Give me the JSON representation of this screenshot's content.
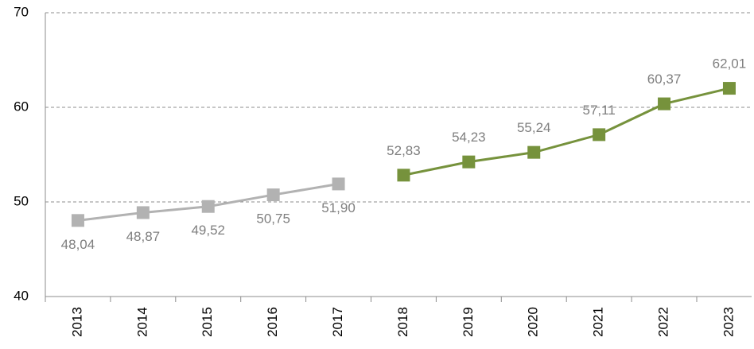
{
  "chart_data": {
    "type": "line",
    "categories": [
      "2013",
      "2014",
      "2015",
      "2016",
      "2017",
      "2018",
      "2019",
      "2020",
      "2021",
      "2022",
      "2023"
    ],
    "series": [
      {
        "color": "#b2b2b2",
        "label_position": "below",
        "values": [
          48.04,
          48.87,
          49.52,
          50.75,
          51.9,
          null,
          null,
          null,
          null,
          null,
          null
        ],
        "value_labels": [
          "48,04",
          "48,87",
          "49,52",
          "50,75",
          "51,90",
          null,
          null,
          null,
          null,
          null,
          null
        ]
      },
      {
        "color": "#76923c",
        "label_position": "above",
        "values": [
          null,
          null,
          null,
          null,
          null,
          52.83,
          54.23,
          55.24,
          57.11,
          60.37,
          62.01
        ],
        "value_labels": [
          null,
          null,
          null,
          null,
          null,
          "52,83",
          "54,23",
          "55,24",
          "57,11",
          "60,37",
          "62,01"
        ]
      }
    ],
    "ylim": [
      40,
      70
    ],
    "yticks": [
      40,
      50,
      60,
      70
    ],
    "grid": true
  }
}
